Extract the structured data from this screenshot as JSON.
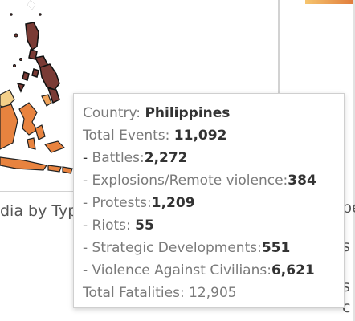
{
  "caption": "dia by Typ",
  "right_fragments": [
    "be",
    "s",
    "s",
    "c"
  ],
  "tooltip": {
    "country_label": "Country: ",
    "country_value": "Philippines",
    "total_events_label": "Total Events: ",
    "total_events_value": "11,092",
    "breakdown": [
      {
        "prefix": "- ",
        "label": "Battles:",
        "value": "2,272",
        "prefix_dark": true
      },
      {
        "prefix": "- ",
        "label": "Explosions/Remote violence:",
        "value": "384"
      },
      {
        "prefix": "- ",
        "label": "Protests:",
        "value": "1,209"
      },
      {
        "prefix": "- ",
        "label": "Riots: ",
        "value": "55"
      },
      {
        "prefix": "- ",
        "label": "Strategic Developments:",
        "value": "551"
      },
      {
        "prefix": "- ",
        "label": "Violence Against Civilians:",
        "value": "6,621"
      }
    ],
    "fatalities_label": "Total Fatalities: ",
    "fatalities_value": "12,905"
  },
  "colors": {
    "philippines": "#7a3b35",
    "indonesia": "#e8833f",
    "indonesia_light": "#f0a45a",
    "highlight": "#f4d08a"
  }
}
